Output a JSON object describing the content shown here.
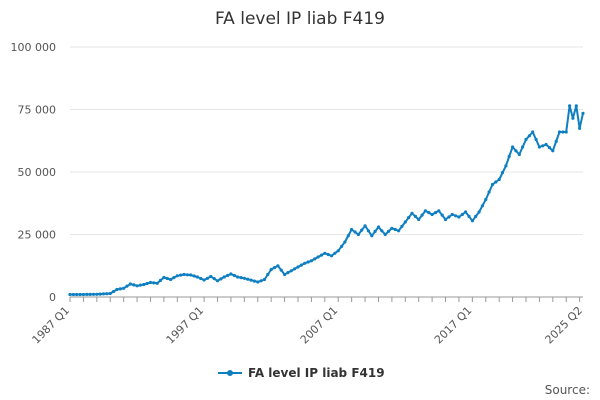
{
  "chart_data": {
    "type": "line",
    "title": "FA level IP liab F419",
    "xlabel": "",
    "ylabel": "",
    "x_range": [
      "1987 Q1",
      "2025 Q2"
    ],
    "x_tick_labels": [
      "1987 Q1",
      "1997 Q1",
      "2007 Q1",
      "2017 Q1",
      "2025 Q2"
    ],
    "y_tick_labels": [
      "0",
      "25 000",
      "50 000",
      "75 000",
      "100 000"
    ],
    "ylim": [
      0,
      100000
    ],
    "grid": "horizontal",
    "legend_position": "bottom",
    "series": [
      {
        "name": "FA level IP liab F419",
        "color": "#0f7fc1",
        "points": [
          [
            "1987 Q1",
            1000
          ],
          [
            "1988 Q1",
            1000
          ],
          [
            "1989 Q1",
            1100
          ],
          [
            "1990 Q1",
            1400
          ],
          [
            "1990 Q3",
            3000
          ],
          [
            "1991 Q1",
            3500
          ],
          [
            "1991 Q3",
            5200
          ],
          [
            "1992 Q1",
            4500
          ],
          [
            "1992 Q3",
            5000
          ],
          [
            "1993 Q1",
            5800
          ],
          [
            "1993 Q3",
            5500
          ],
          [
            "1994 Q1",
            7800
          ],
          [
            "1994 Q3",
            7000
          ],
          [
            "1995 Q1",
            8500
          ],
          [
            "1995 Q3",
            9000
          ],
          [
            "1996 Q1",
            8800
          ],
          [
            "1996 Q3",
            8000
          ],
          [
            "1997 Q1",
            6800
          ],
          [
            "1997 Q3",
            8200
          ],
          [
            "1998 Q1",
            6500
          ],
          [
            "1998 Q3",
            8000
          ],
          [
            "1999 Q1",
            9200
          ],
          [
            "1999 Q3",
            8000
          ],
          [
            "2000 Q1",
            7500
          ],
          [
            "2001 Q1",
            6000
          ],
          [
            "2001 Q3",
            7000
          ],
          [
            "2002 Q1",
            11000
          ],
          [
            "2002 Q3",
            12500
          ],
          [
            "2003 Q1",
            9000
          ],
          [
            "2003 Q3",
            10500
          ],
          [
            "2004 Q1",
            12000
          ],
          [
            "2004 Q3",
            13500
          ],
          [
            "2005 Q1",
            14500
          ],
          [
            "2005 Q3",
            16000
          ],
          [
            "2006 Q1",
            17500
          ],
          [
            "2006 Q3",
            16500
          ],
          [
            "2007 Q1",
            18500
          ],
          [
            "2007 Q3",
            22000
          ],
          [
            "2008 Q1",
            27000
          ],
          [
            "2008 Q3",
            25000
          ],
          [
            "2009 Q1",
            28500
          ],
          [
            "2009 Q3",
            24500
          ],
          [
            "2010 Q1",
            28000
          ],
          [
            "2010 Q3",
            25000
          ],
          [
            "2011 Q1",
            27500
          ],
          [
            "2011 Q3",
            26500
          ],
          [
            "2012 Q1",
            30000
          ],
          [
            "2012 Q3",
            33500
          ],
          [
            "2013 Q1",
            31000
          ],
          [
            "2013 Q3",
            34500
          ],
          [
            "2014 Q1",
            33000
          ],
          [
            "2014 Q3",
            34500
          ],
          [
            "2015 Q1",
            31000
          ],
          [
            "2015 Q3",
            33000
          ],
          [
            "2016 Q1",
            32000
          ],
          [
            "2016 Q3",
            34000
          ],
          [
            "2017 Q1",
            30500
          ],
          [
            "2017 Q3",
            34000
          ],
          [
            "2018 Q1",
            39000
          ],
          [
            "2018 Q3",
            45000
          ],
          [
            "2019 Q1",
            47000
          ],
          [
            "2019 Q3",
            52500
          ],
          [
            "2020 Q1",
            60000
          ],
          [
            "2020 Q3",
            57000
          ],
          [
            "2021 Q1",
            63000
          ],
          [
            "2021 Q3",
            66000
          ],
          [
            "2022 Q1",
            60000
          ],
          [
            "2022 Q3",
            61000
          ],
          [
            "2023 Q1",
            58500
          ],
          [
            "2023 Q3",
            66000
          ],
          [
            "2024 Q1",
            66000
          ],
          [
            "2024 Q2",
            76500
          ],
          [
            "2024 Q3",
            71500
          ],
          [
            "2024 Q4",
            76500
          ],
          [
            "2025 Q1",
            67500
          ],
          [
            "2025 Q2",
            73500
          ]
        ]
      }
    ]
  },
  "legend": {
    "label": "FA level IP liab F419"
  },
  "footer": {
    "source_label": "Source:"
  }
}
